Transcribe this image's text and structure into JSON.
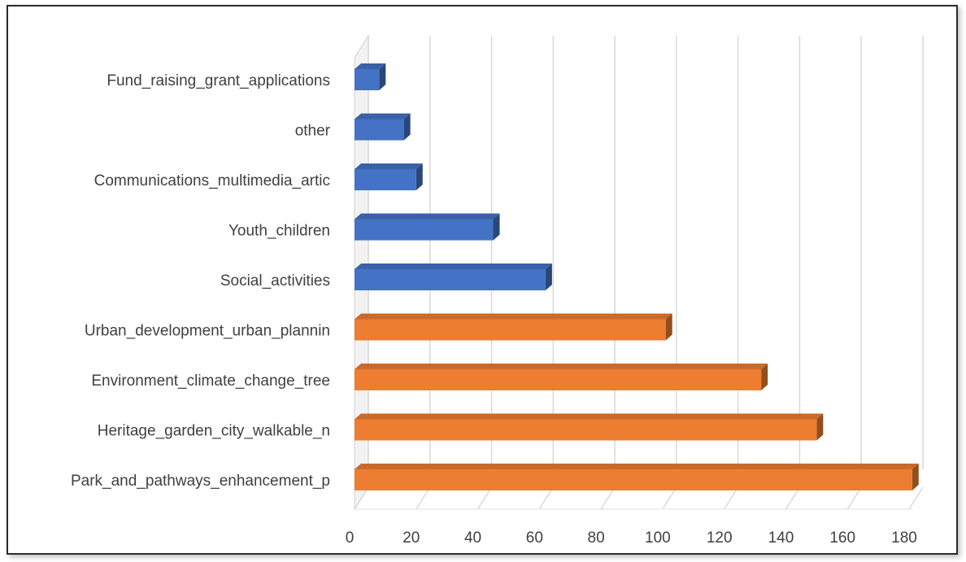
{
  "chart_data": {
    "type": "bar",
    "orientation": "horizontal",
    "style": "3d",
    "categories": [
      "Park_and_pathways_enhancement_p",
      "Heritage_garden_city_walkable_n",
      "Environment_climate_change_tree",
      "Urban_development_urban_plannin",
      "Social_activities",
      "Youth_children",
      "Communications_multimedia_artic",
      "other",
      "Fund_raising_grant_applications"
    ],
    "values": [
      181,
      150,
      132,
      101,
      62,
      45,
      20,
      16,
      8
    ],
    "bar_colors": [
      "#ED7D31",
      "#ED7D31",
      "#ED7D31",
      "#ED7D31",
      "#4472C4",
      "#4472C4",
      "#4472C4",
      "#4472C4",
      "#4472C4"
    ],
    "title": "",
    "xlabel": "",
    "ylabel": "",
    "xlim": [
      0,
      180
    ],
    "xticks": [
      "0",
      "20",
      "40",
      "60",
      "80",
      "100",
      "120",
      "140",
      "160",
      "180"
    ],
    "grid": true,
    "legend": "none"
  }
}
